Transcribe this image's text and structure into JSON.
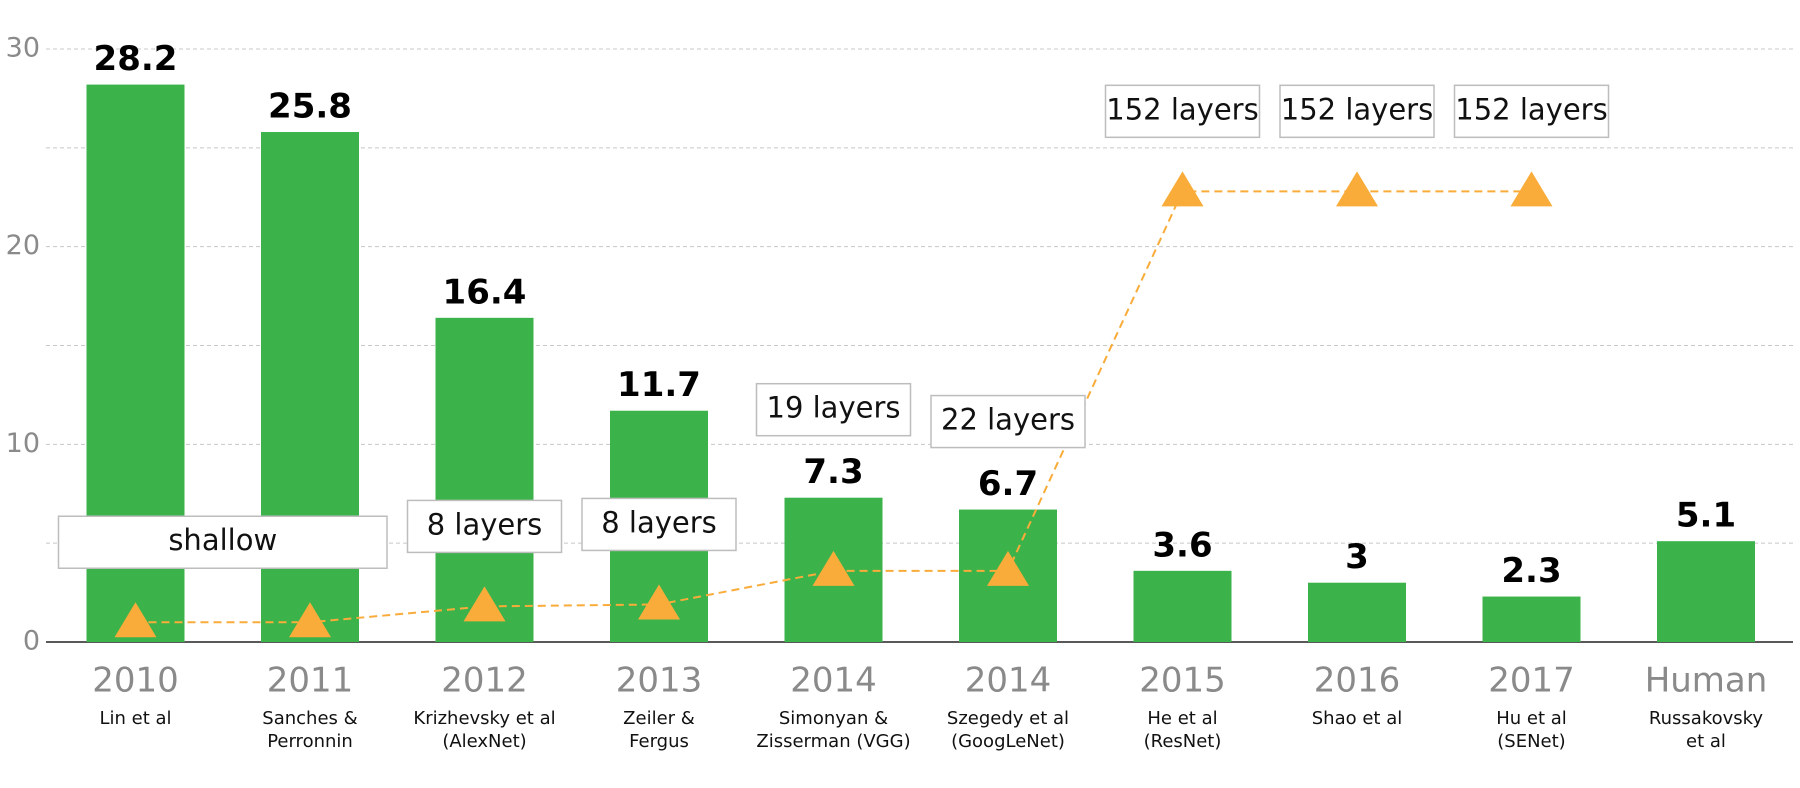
{
  "chart_data": {
    "type": "bar",
    "categories": [
      "2010",
      "2011",
      "2012",
      "2013",
      "2014",
      "2014",
      "2015",
      "2016",
      "2017",
      "Human"
    ],
    "sublabels": [
      [
        "Lin et al"
      ],
      [
        "Sanches &",
        "Perronnin"
      ],
      [
        "Krizhevsky et al",
        "(AlexNet)"
      ],
      [
        "Zeiler &",
        "Fergus"
      ],
      [
        "Simonyan &",
        "Zisserman (VGG)"
      ],
      [
        "Szegedy et al",
        "(GoogLeNet)"
      ],
      [
        "He et al",
        "(ResNet)"
      ],
      [
        "Shao et al"
      ],
      [
        "Hu et al",
        "(SENet)"
      ],
      [
        "Russakovsky",
        "et al"
      ]
    ],
    "values": [
      28.2,
      25.8,
      16.4,
      11.7,
      7.3,
      6.7,
      3.6,
      3,
      2.3,
      5.1
    ],
    "color": "#3bb34a",
    "series": [
      {
        "type": "line",
        "color": "#f9ac3a",
        "values": [
          1,
          1,
          1.8,
          1.9,
          3.6,
          3.6,
          22.8,
          22.8,
          22.8,
          null
        ],
        "labels": [
          "shallow",
          null,
          "8 layers",
          "8 layers",
          "19 layers",
          "22 layers",
          "152 layers",
          "152 layers",
          "152 layers",
          null
        ]
      }
    ],
    "ylim": [
      0,
      30
    ],
    "yticks": [
      0,
      10,
      20,
      30
    ],
    "minor_yticks": [
      5,
      15,
      25
    ],
    "grid": true
  }
}
